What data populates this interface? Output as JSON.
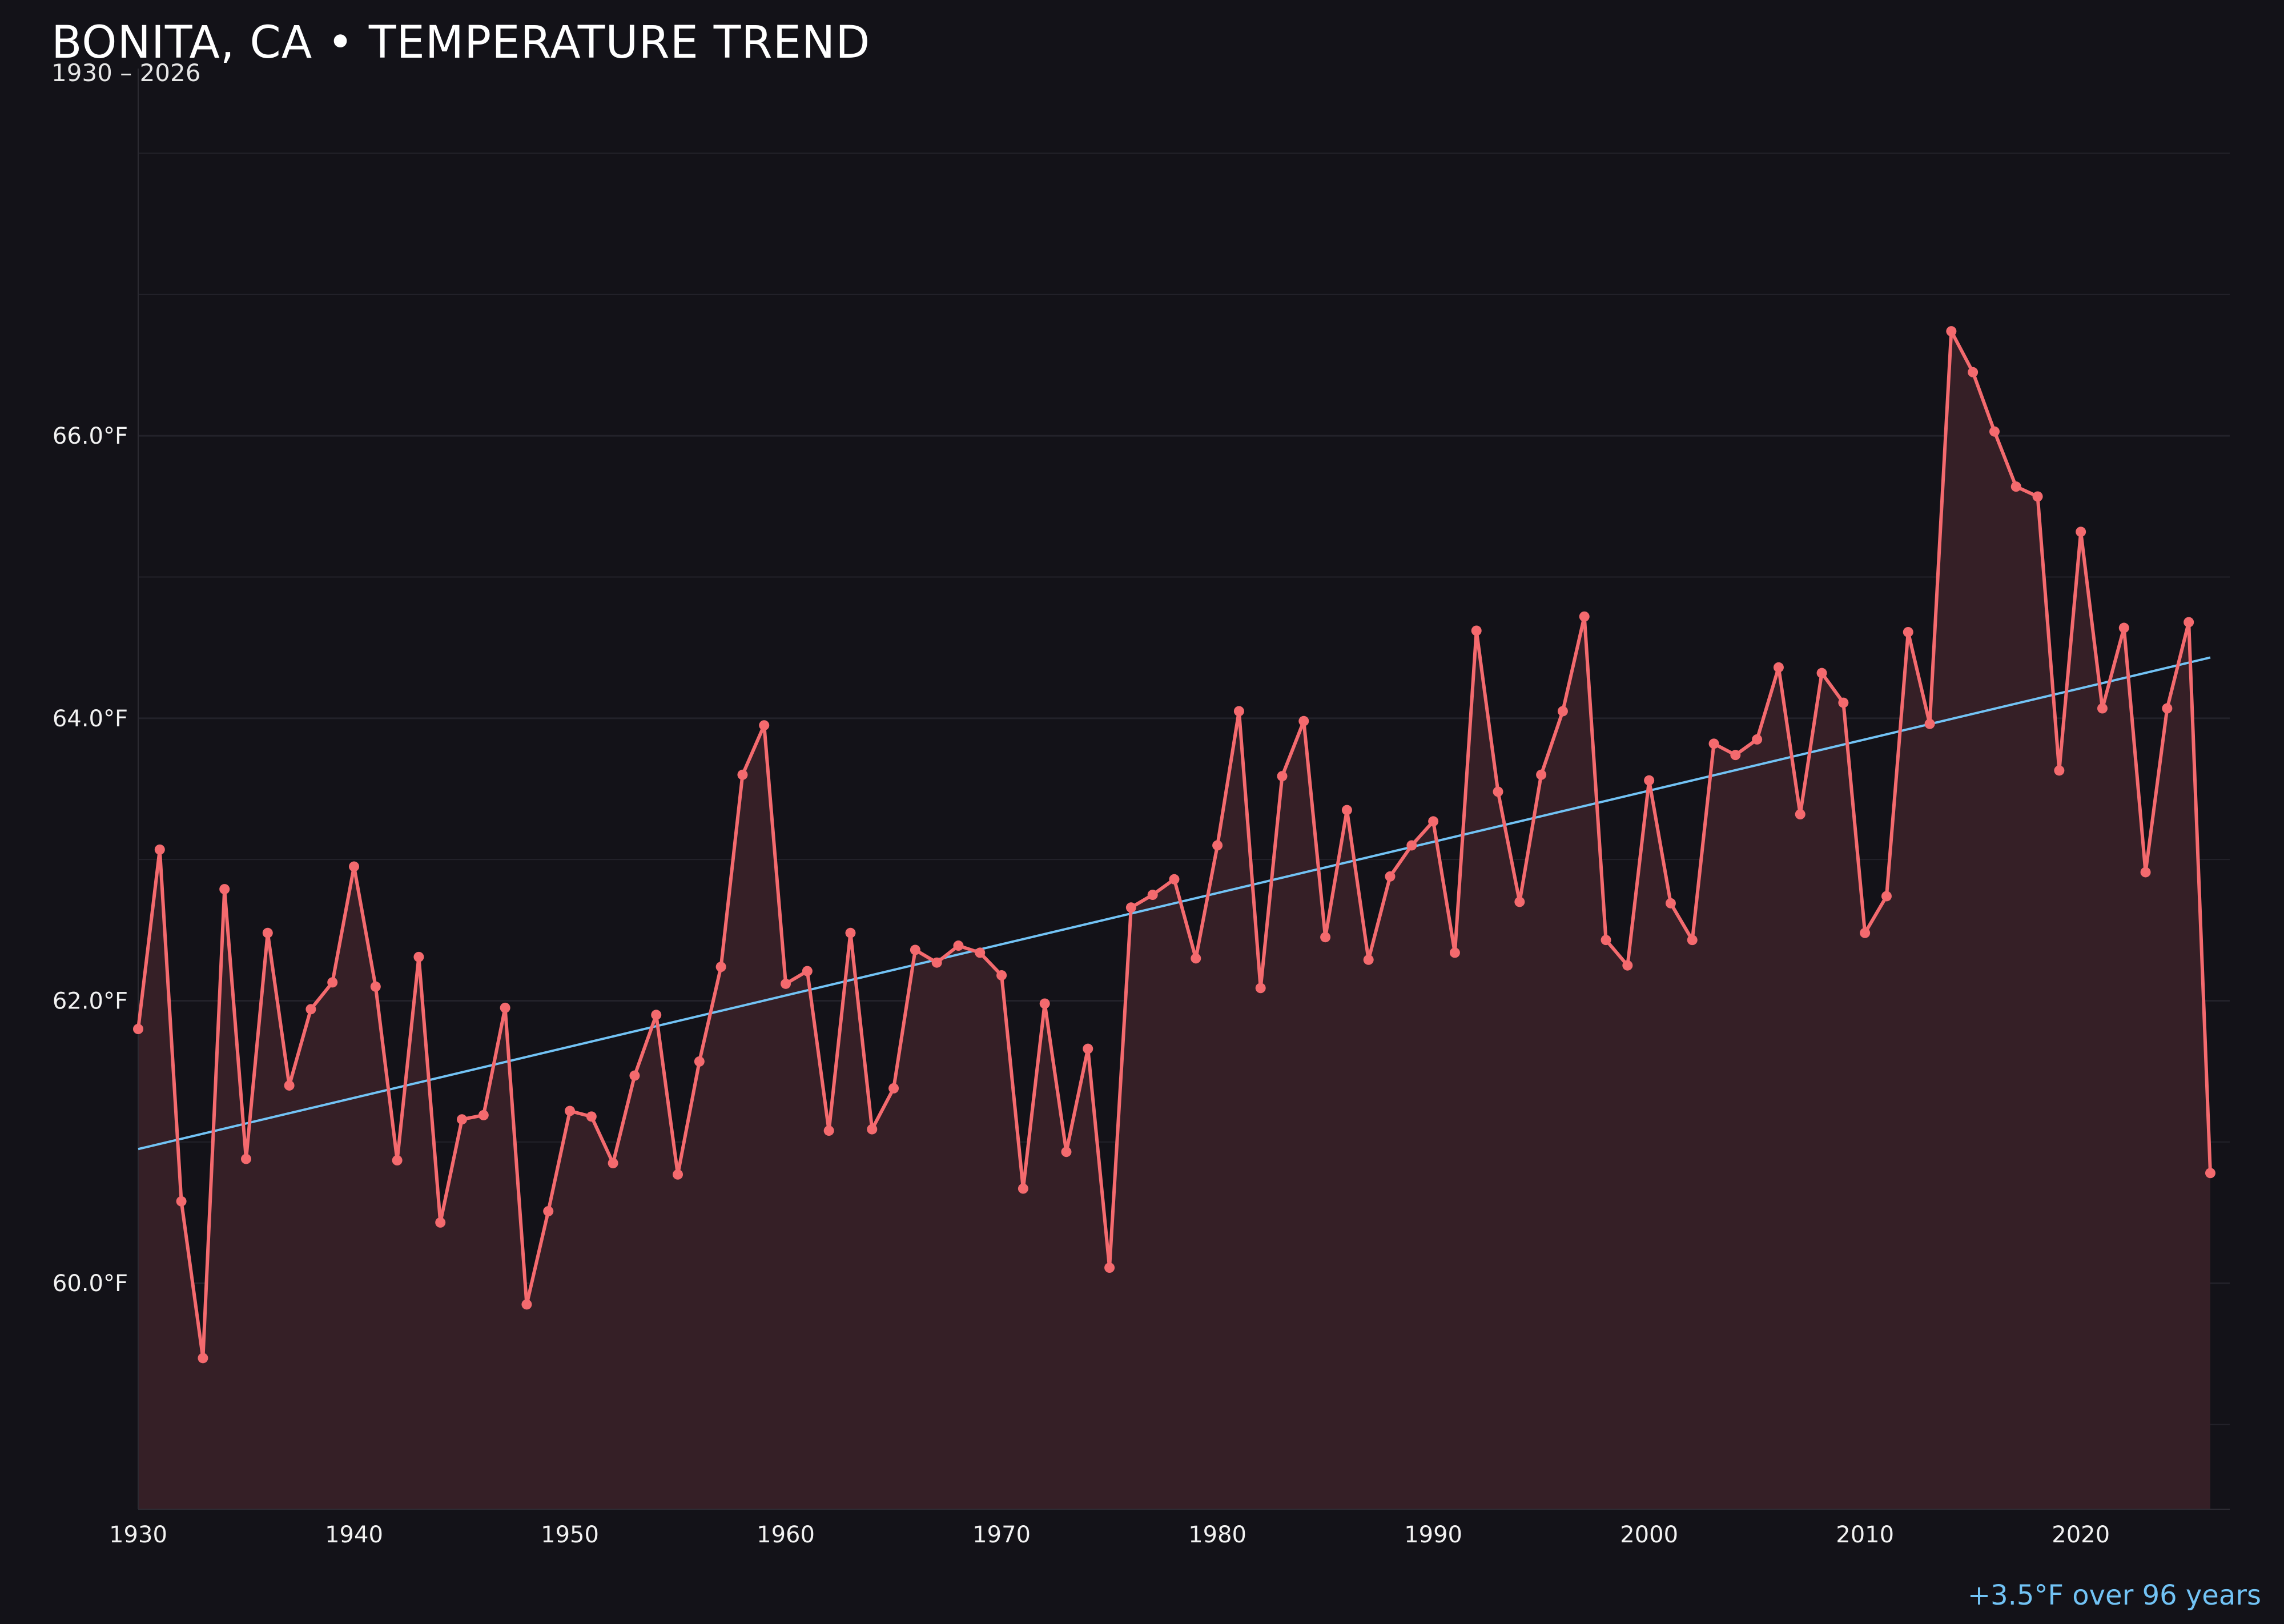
{
  "chart_data": {
    "type": "line",
    "title": "BONITA, CA • TEMPERATURE TREND",
    "subtitle": "1930 – 2026",
    "xlabel": "",
    "ylabel": "",
    "annotation": "+3.5°F over 96 years",
    "xlim": [
      1930,
      2026.9
    ],
    "ylim": [
      58.4,
      68.6
    ],
    "y_ticks": [
      60,
      62,
      64,
      66
    ],
    "y_tick_labels": [
      "60.0°F",
      "62.0°F",
      "64.0°F",
      "66.0°F"
    ],
    "x_ticks": [
      1930,
      1940,
      1950,
      1960,
      1970,
      1980,
      1990,
      2000,
      2010,
      2020
    ],
    "x_tick_labels": [
      "1930",
      "1940",
      "1950",
      "1960",
      "1970",
      "1980",
      "1990",
      "2000",
      "2010",
      "2020"
    ],
    "grid": "horizontal",
    "fill_under_line": true,
    "colors": {
      "background": "#131218",
      "line": "#f46a6e",
      "fill": "#351f26",
      "trend": "#72c3f5",
      "grid": "#23222a"
    },
    "series": [
      {
        "x": [
          1930,
          1931,
          1932,
          1933,
          1934,
          1935,
          1936,
          1937,
          1938,
          1939,
          1940,
          1941,
          1942,
          1943,
          1944,
          1945,
          1946,
          1947,
          1948,
          1949,
          1950,
          1951,
          1952,
          1953,
          1954,
          1955,
          1956,
          1957,
          1958,
          1959,
          1960,
          1961,
          1962,
          1963,
          1964,
          1965,
          1966,
          1967,
          1968,
          1969,
          1970,
          1971,
          1972,
          1973,
          1974,
          1975,
          1976,
          1977,
          1978,
          1979,
          1980,
          1981,
          1982,
          1983,
          1984,
          1985,
          1986,
          1987,
          1988,
          1989,
          1990,
          1991,
          1992,
          1993,
          1994,
          1995,
          1996,
          1997,
          1998,
          1999,
          2000,
          2001,
          2002,
          2003,
          2004,
          2005,
          2006,
          2007,
          2008,
          2009,
          2010,
          2011,
          2012,
          2013,
          2014,
          2015,
          2016,
          2017,
          2018,
          2019,
          2020,
          2021,
          2022,
          2023,
          2024,
          2025,
          2026
        ],
        "values": [
          61.8,
          63.07,
          60.58,
          59.47,
          62.79,
          60.88,
          62.48,
          61.4,
          61.94,
          62.13,
          62.95,
          62.1,
          60.87,
          62.31,
          60.43,
          61.16,
          61.19,
          61.95,
          59.85,
          60.51,
          61.22,
          61.18,
          60.85,
          61.47,
          61.9,
          60.77,
          61.57,
          62.24,
          63.6,
          63.95,
          62.12,
          62.21,
          61.08,
          62.48,
          61.09,
          61.38,
          62.36,
          62.27,
          62.39,
          62.34,
          62.18,
          60.67,
          61.98,
          60.93,
          61.66,
          60.11,
          62.66,
          62.75,
          62.86,
          62.3,
          63.1,
          64.05,
          62.09,
          63.59,
          63.98,
          62.45,
          63.35,
          62.29,
          62.88,
          63.1,
          63.27,
          62.34,
          64.62,
          63.48,
          62.7,
          63.6,
          64.05,
          64.72,
          62.43,
          62.25,
          63.56,
          62.69,
          62.43,
          63.82,
          63.74,
          63.85,
          64.36,
          63.32,
          64.32,
          64.11,
          62.48,
          62.74,
          64.61,
          63.96,
          66.74,
          66.45,
          66.03,
          65.64,
          65.57,
          63.63,
          65.32,
          64.07,
          64.64,
          62.91,
          64.07,
          64.68,
          60.78
        ]
      }
    ],
    "trendline": {
      "x": [
        1930,
        2026
      ],
      "values": [
        60.95,
        64.43
      ]
    }
  }
}
